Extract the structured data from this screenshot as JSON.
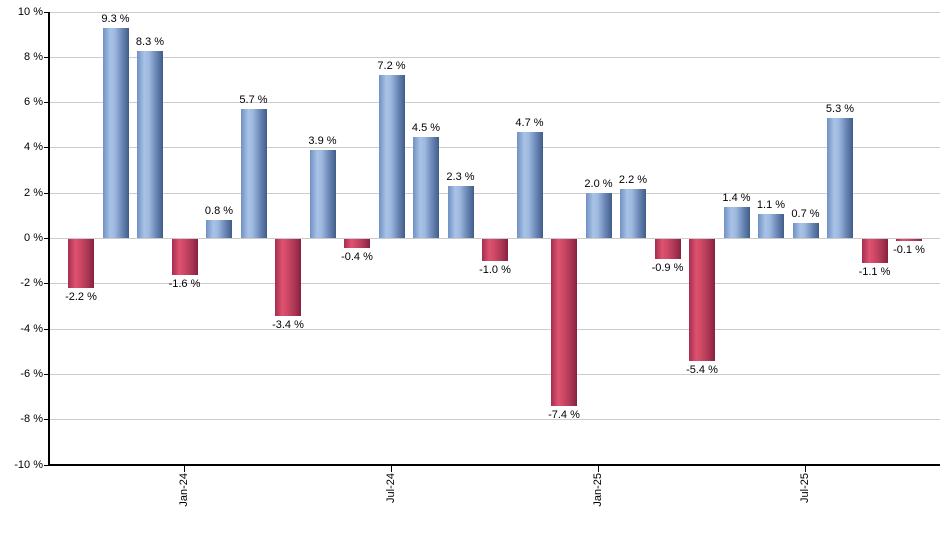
{
  "chart_data": {
    "type": "bar",
    "title": "",
    "unit": "%",
    "values": [
      -2.2,
      9.3,
      8.3,
      -1.6,
      0.8,
      5.7,
      -3.4,
      3.9,
      -0.4,
      7.2,
      4.5,
      2.3,
      -1.0,
      4.7,
      -7.4,
      2.0,
      2.2,
      -0.9,
      -5.4,
      1.4,
      1.1,
      0.7,
      5.3,
      -1.1,
      -0.1
    ],
    "bar_labels": [
      "-2.2 %",
      "9.3 %",
      "8.3 %",
      "-1.6 %",
      "0.8 %",
      "5.7 %",
      "-3.4 %",
      "3.9 %",
      "-0.4 %",
      "7.2 %",
      "4.5 %",
      "2.3 %",
      "-1.0 %",
      "4.7 %",
      "-7.4 %",
      "2.0 %",
      "2.2 %",
      "-0.9 %",
      "-5.4 %",
      "1.4 %",
      "1.1 %",
      "0.7 %",
      "5.3 %",
      "-1.1 %",
      "-0.1 %"
    ],
    "xticks": [
      {
        "bar_index": 3,
        "label": "Jan-24"
      },
      {
        "bar_index": 9,
        "label": "Jul-24"
      },
      {
        "bar_index": 15,
        "label": "Jan-25"
      },
      {
        "bar_index": 21,
        "label": "Jul-25"
      }
    ],
    "yticks": {
      "values": [
        10,
        8,
        6,
        4,
        2,
        0,
        -2,
        -4,
        -6,
        -8,
        -10
      ],
      "labels": [
        "10 %",
        "8 %",
        "6 %",
        "4 %",
        "2 %",
        "0 %",
        "-2 %",
        "-4 %",
        "-6 %",
        "-8 %",
        "-10 %"
      ]
    },
    "ylim": [
      -10,
      10
    ],
    "grid": true,
    "legend": null,
    "colors": {
      "positive_light": "#A9C3E7",
      "positive_dark": "#46648F",
      "negative_light": "#DE5271",
      "negative_dark": "#8E2443",
      "gridline": "#CCCCCC",
      "axis": "#000000",
      "text": "#000000"
    }
  }
}
